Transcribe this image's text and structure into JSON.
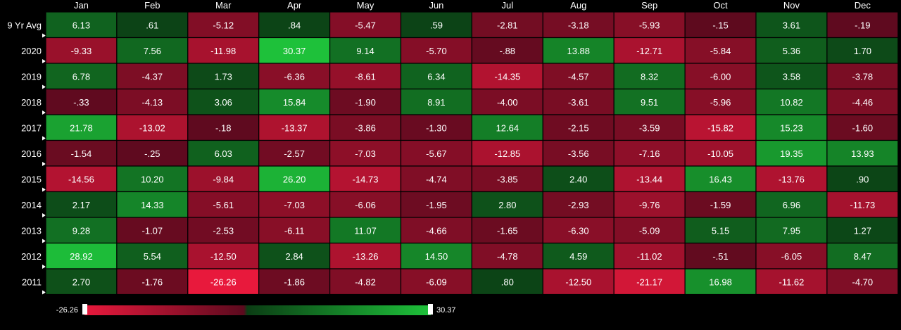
{
  "chart_data": {
    "type": "heatmap",
    "columns": [
      "Jan",
      "Feb",
      "Mar",
      "Apr",
      "May",
      "Jun",
      "Jul",
      "Aug",
      "Sep",
      "Oct",
      "Nov",
      "Dec"
    ],
    "rows": [
      {
        "label": "9 Yr Avg",
        "values": [
          "6.13",
          ".61",
          "-5.12",
          ".84",
          "-5.47",
          ".59",
          "-2.81",
          "-3.18",
          "-5.93",
          "-.15",
          "3.61",
          "-.19"
        ]
      },
      {
        "label": "2020",
        "values": [
          "-9.33",
          "7.56",
          "-11.98",
          "30.37",
          "9.14",
          "-5.70",
          "-.88",
          "13.88",
          "-12.71",
          "-5.84",
          "5.36",
          "1.70"
        ]
      },
      {
        "label": "2019",
        "values": [
          "6.78",
          "-4.37",
          "1.73",
          "-6.36",
          "-8.61",
          "6.34",
          "-14.35",
          "-4.57",
          "8.32",
          "-6.00",
          "3.58",
          "-3.78"
        ]
      },
      {
        "label": "2018",
        "values": [
          "-.33",
          "-4.13",
          "3.06",
          "15.84",
          "-1.90",
          "8.91",
          "-4.00",
          "-3.61",
          "9.51",
          "-5.96",
          "10.82",
          "-4.46"
        ]
      },
      {
        "label": "2017",
        "values": [
          "21.78",
          "-13.02",
          "-.18",
          "-13.37",
          "-3.86",
          "-1.30",
          "12.64",
          "-2.15",
          "-3.59",
          "-15.82",
          "15.23",
          "-1.60"
        ]
      },
      {
        "label": "2016",
        "values": [
          "-1.54",
          "-.25",
          "6.03",
          "-2.57",
          "-7.03",
          "-5.67",
          "-12.85",
          "-3.56",
          "-7.16",
          "-10.05",
          "19.35",
          "13.93"
        ]
      },
      {
        "label": "2015",
        "values": [
          "-14.56",
          "10.20",
          "-9.84",
          "26.20",
          "-14.73",
          "-4.74",
          "-3.85",
          "2.40",
          "-13.44",
          "16.43",
          "-13.76",
          ".90"
        ]
      },
      {
        "label": "2014",
        "values": [
          "2.17",
          "14.33",
          "-5.61",
          "-7.03",
          "-6.06",
          "-1.95",
          "2.80",
          "-2.93",
          "-9.76",
          "-1.59",
          "6.96",
          "-11.73"
        ]
      },
      {
        "label": "2013",
        "values": [
          "9.28",
          "-1.07",
          "-2.53",
          "-6.11",
          "11.07",
          "-4.66",
          "-1.65",
          "-6.30",
          "-5.09",
          "5.15",
          "7.95",
          "1.27"
        ]
      },
      {
        "label": "2012",
        "values": [
          "28.92",
          "5.54",
          "-12.50",
          "2.84",
          "-13.26",
          "14.50",
          "-4.78",
          "4.59",
          "-11.02",
          "-.51",
          "-6.05",
          "8.47"
        ]
      },
      {
        "label": "2011",
        "values": [
          "2.70",
          "-1.76",
          "-26.26",
          "-1.86",
          "-4.82",
          "-6.09",
          ".80",
          "-12.50",
          "-21.17",
          "16.98",
          "-11.62",
          "-4.70"
        ]
      }
    ],
    "scale": {
      "min": -26.26,
      "max": 30.37,
      "min_label": "-26.26",
      "max_label": "30.37"
    },
    "colors": {
      "background": "#000000",
      "neg_strong": "#e8193c",
      "neg_weak": "#5c0a1e",
      "pos_weak": "#0b3d14",
      "pos_strong": "#1ec13a"
    }
  }
}
